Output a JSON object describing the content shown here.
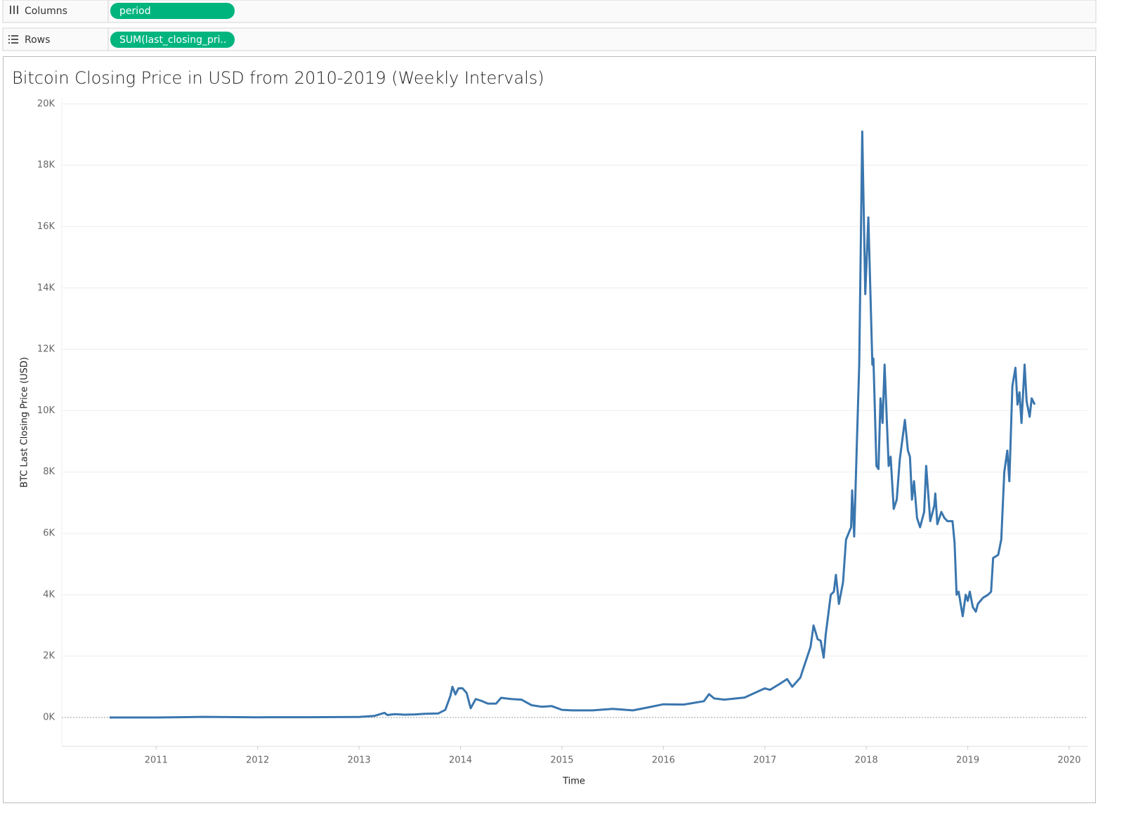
{
  "shelves": {
    "columns": {
      "label": "Columns",
      "pill": "period"
    },
    "rows": {
      "label": "Rows",
      "pill": "SUM(last_closing_pri.."
    }
  },
  "chart_data": {
    "type": "line",
    "title": "Bitcoin Closing Price in USD from 2010-2019 (Weekly Intervals)",
    "x_label": "Time",
    "y_label": "BTC Last Closing Price (USD)",
    "color": "#3a76ae",
    "grid": true,
    "xlim": [
      2010.07,
      2020.18
    ],
    "xticks": [
      2011,
      2012,
      2013,
      2014,
      2015,
      2016,
      2017,
      2018,
      2019,
      2020
    ],
    "ylim": [
      -940,
      20180
    ],
    "yticks": [
      {
        "value": 0,
        "label": "0K"
      },
      {
        "value": 2000,
        "label": "2K"
      },
      {
        "value": 4000,
        "label": "4K"
      },
      {
        "value": 6000,
        "label": "6K"
      },
      {
        "value": 8000,
        "label": "8K"
      },
      {
        "value": 10000,
        "label": "10K"
      },
      {
        "value": 12000,
        "label": "12K"
      },
      {
        "value": 14000,
        "label": "14K"
      },
      {
        "value": 16000,
        "label": "16K"
      },
      {
        "value": 18000,
        "label": "18K"
      },
      {
        "value": 20000,
        "label": "20K"
      }
    ],
    "x": [
      2010.54,
      2011.0,
      2011.3,
      2011.45,
      2012.0,
      2012.5,
      2013.0,
      2013.15,
      2013.25,
      2013.28,
      2013.35,
      2013.45,
      2013.55,
      2013.65,
      2013.78,
      2013.85,
      2013.9,
      2013.92,
      2013.95,
      2013.98,
      2014.02,
      2014.06,
      2014.1,
      2014.15,
      2014.2,
      2014.27,
      2014.35,
      2014.4,
      2014.5,
      2014.6,
      2014.7,
      2014.8,
      2014.9,
      2015.0,
      2015.1,
      2015.3,
      2015.5,
      2015.7,
      2015.85,
      2016.0,
      2016.2,
      2016.4,
      2016.45,
      2016.5,
      2016.6,
      2016.8,
      2017.0,
      2017.05,
      2017.15,
      2017.22,
      2017.27,
      2017.35,
      2017.4,
      2017.45,
      2017.48,
      2017.52,
      2017.55,
      2017.58,
      2017.6,
      2017.65,
      2017.68,
      2017.7,
      2017.73,
      2017.77,
      2017.8,
      2017.85,
      2017.86,
      2017.88,
      2017.91,
      2017.93,
      2017.96,
      2017.99,
      2018.02,
      2018.06,
      2018.07,
      2018.1,
      2018.12,
      2018.14,
      2018.16,
      2018.18,
      2018.22,
      2018.24,
      2018.27,
      2018.3,
      2018.33,
      2018.38,
      2018.41,
      2018.43,
      2018.45,
      2018.47,
      2018.5,
      2018.53,
      2018.57,
      2018.59,
      2018.63,
      2018.67,
      2018.68,
      2018.7,
      2018.74,
      2018.77,
      2018.8,
      2018.85,
      2018.87,
      2018.89,
      2018.91,
      2018.95,
      2018.98,
      2019.0,
      2019.02,
      2019.05,
      2019.08,
      2019.1,
      2019.15,
      2019.2,
      2019.23,
      2019.25,
      2019.3,
      2019.33,
      2019.36,
      2019.39,
      2019.41,
      2019.44,
      2019.47,
      2019.49,
      2019.51,
      2019.53,
      2019.56,
      2019.58,
      2019.61,
      2019.63,
      2019.66
    ],
    "values": [
      0,
      0,
      10,
      20,
      5,
      8,
      15,
      50,
      150,
      80,
      110,
      90,
      100,
      120,
      130,
      250,
      700,
      1000,
      750,
      950,
      950,
      800,
      300,
      600,
      550,
      450,
      450,
      640,
      600,
      580,
      400,
      350,
      370,
      250,
      230,
      230,
      280,
      230,
      330,
      430,
      420,
      530,
      760,
      620,
      580,
      650,
      950,
      900,
      1100,
      1250,
      1000,
      1300,
      1800,
      2300,
      3000,
      2550,
      2500,
      1950,
      2700,
      4000,
      4100,
      4650,
      3700,
      4400,
      5800,
      6200,
      7400,
      5900,
      9300,
      11500,
      19100,
      13800,
      16300,
      11500,
      11700,
      8200,
      8100,
      10400,
      9600,
      11500,
      8200,
      8500,
      6800,
      7100,
      8400,
      9700,
      8700,
      8500,
      7100,
      7700,
      6500,
      6200,
      6700,
      8200,
      6400,
      6900,
      7300,
      6300,
      6700,
      6500,
      6400,
      6400,
      5700,
      4000,
      4100,
      3300,
      4000,
      3800,
      4100,
      3600,
      3450,
      3700,
      3900,
      4000,
      4100,
      5200,
      5300,
      5800,
      8000,
      8700,
      7700,
      10800,
      11400,
      10200,
      10600,
      9600,
      11500,
      10300,
      9800,
      10400,
      10200
    ]
  }
}
